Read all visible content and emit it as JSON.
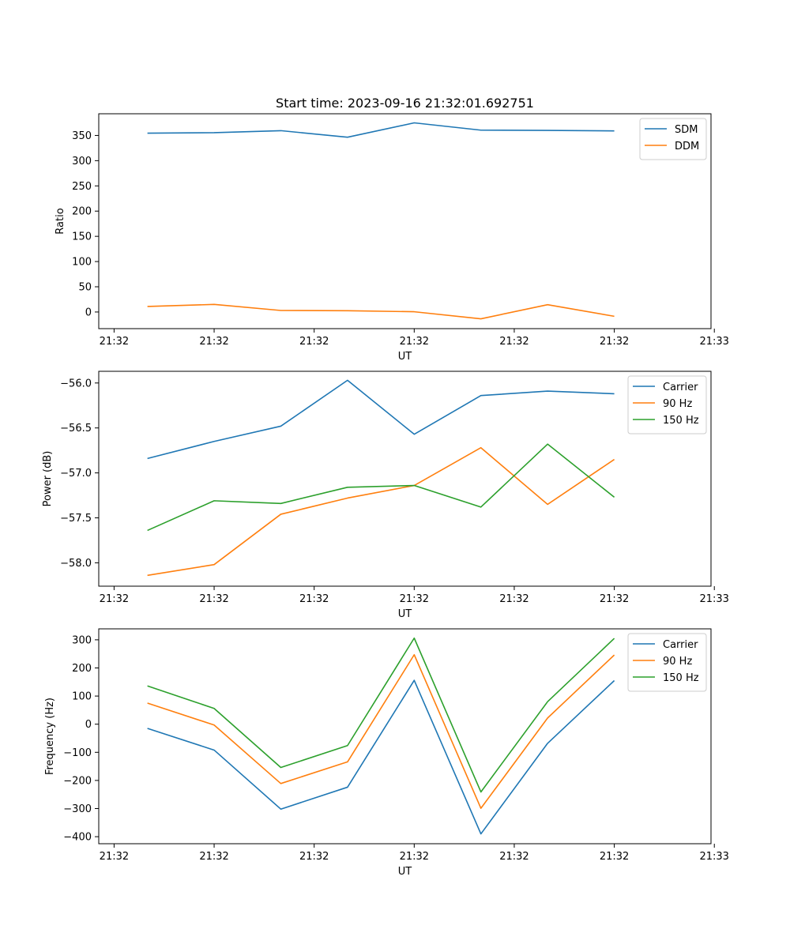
{
  "figure_title": "Start time: 2023-09-16 21:32:01.692751",
  "colors": {
    "blue": "#1f77b4",
    "orange": "#ff7f0e",
    "green": "#2ca02c"
  },
  "chart_data": [
    {
      "type": "line",
      "title": "Start time: 2023-09-16 21:32:01.692751",
      "xlabel": "UT",
      "ylabel": "Ratio",
      "x": [
        1,
        2,
        3,
        4,
        5,
        6,
        7,
        8
      ],
      "xlim": [
        0.27,
        9.45
      ],
      "xticks": [
        0.5,
        2.0,
        3.5,
        5.0,
        6.5,
        8.0,
        9.5
      ],
      "xtick_labels": [
        "21:32",
        "21:32",
        "21:32",
        "21:32",
        "21:32",
        "21:32",
        "21:33"
      ],
      "ylim": [
        -33,
        393
      ],
      "yticks": [
        0,
        50,
        100,
        150,
        200,
        250,
        300,
        350
      ],
      "ytick_labels": [
        "0",
        "50",
        "100",
        "150",
        "200",
        "250",
        "300",
        "350"
      ],
      "legend": "top-right",
      "series": [
        {
          "name": "SDM",
          "color": "#1f77b4",
          "values": [
            354.5,
            355.5,
            359.5,
            346.5,
            375.0,
            360.5,
            360.0,
            359.0
          ]
        },
        {
          "name": "DDM",
          "color": "#ff7f0e",
          "values": [
            11.0,
            15.0,
            3.0,
            2.5,
            0.5,
            -13.5,
            14.5,
            -8.5
          ]
        }
      ]
    },
    {
      "type": "line",
      "title": "",
      "xlabel": "UT",
      "ylabel": "Power (dB)",
      "x": [
        1,
        2,
        3,
        4,
        5,
        6,
        7,
        8
      ],
      "xlim": [
        0.27,
        9.45
      ],
      "xticks": [
        0.5,
        2.0,
        3.5,
        5.0,
        6.5,
        8.0,
        9.5
      ],
      "xtick_labels": [
        "21:32",
        "21:32",
        "21:32",
        "21:32",
        "21:32",
        "21:32",
        "21:33"
      ],
      "ylim": [
        -58.26,
        -55.87
      ],
      "yticks": [
        -58.0,
        -57.5,
        -57.0,
        -56.5,
        -56.0
      ],
      "ytick_labels": [
        "−58.0",
        "−57.5",
        "−57.0",
        "−56.5",
        "−56.0"
      ],
      "legend": "top-right",
      "series": [
        {
          "name": "Carrier",
          "color": "#1f77b4",
          "values": [
            -56.84,
            -56.65,
            -56.48,
            -55.97,
            -56.57,
            -56.14,
            -56.09,
            -56.12
          ]
        },
        {
          "name": "90 Hz",
          "color": "#ff7f0e",
          "values": [
            -58.14,
            -58.02,
            -57.46,
            -57.28,
            -57.14,
            -56.72,
            -57.35,
            -56.85
          ]
        },
        {
          "name": "150 Hz",
          "color": "#2ca02c",
          "values": [
            -57.64,
            -57.31,
            -57.34,
            -57.16,
            -57.14,
            -57.38,
            -56.68,
            -57.27
          ]
        }
      ]
    },
    {
      "type": "line",
      "title": "",
      "xlabel": "UT",
      "ylabel": "Frequency (Hz)",
      "x": [
        1,
        2,
        3,
        4,
        5,
        6,
        7,
        8
      ],
      "xlim": [
        0.27,
        9.45
      ],
      "xticks": [
        0.5,
        2.0,
        3.5,
        5.0,
        6.5,
        8.0,
        9.5
      ],
      "xtick_labels": [
        "21:32",
        "21:32",
        "21:32",
        "21:32",
        "21:32",
        "21:32",
        "21:33"
      ],
      "ylim": [
        -425,
        339
      ],
      "yticks": [
        -400,
        -300,
        -200,
        -100,
        0,
        100,
        200,
        300
      ],
      "ytick_labels": [
        "−400",
        "−300",
        "−200",
        "−100",
        "0",
        "100",
        "200",
        "300"
      ],
      "legend": "top-right",
      "series": [
        {
          "name": "Carrier",
          "color": "#1f77b4",
          "values": [
            -15,
            -92,
            -302,
            -224,
            156,
            -390,
            -68,
            155
          ]
        },
        {
          "name": "90 Hz",
          "color": "#ff7f0e",
          "values": [
            75,
            -3,
            -211,
            -134,
            247,
            -299,
            22,
            246
          ]
        },
        {
          "name": "150 Hz",
          "color": "#2ca02c",
          "values": [
            136,
            56,
            -154,
            -76,
            306,
            -241,
            80,
            305
          ]
        }
      ]
    }
  ]
}
